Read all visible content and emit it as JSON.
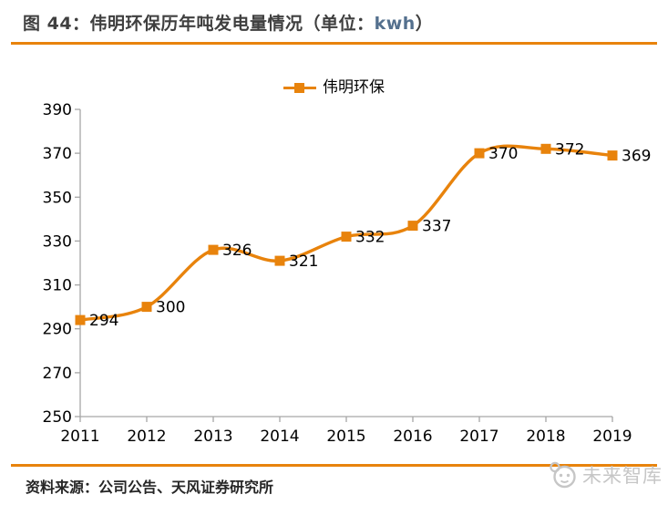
{
  "header": {
    "title_part1": "图 44：伟明环保历年吨发电量情况（单位：",
    "title_unit": "kwh",
    "title_part2": "）"
  },
  "footer": {
    "source": "资料来源：公司公告、天风证券研究所",
    "watermark": "未来智库"
  },
  "colors": {
    "accent_orange": "#E8830C",
    "axis_gray": "#A6A6A6",
    "title_gray": "#3F3F3F",
    "unit_blue": "#54708E",
    "label_black": "#000000",
    "watermark_gray": "#C6C6C6"
  },
  "chart_data": {
    "type": "line",
    "title": "伟明环保历年吨发电量情况",
    "unit": "kwh",
    "categories": [
      "2011",
      "2012",
      "2013",
      "2014",
      "2015",
      "2016",
      "2017",
      "2018",
      "2019"
    ],
    "series": [
      {
        "name": "伟明环保",
        "values": [
          294,
          300,
          326,
          321,
          332,
          337,
          370,
          372,
          369
        ]
      }
    ],
    "ylim": [
      250,
      390
    ],
    "yticks": [
      250,
      270,
      290,
      310,
      330,
      350,
      370,
      390
    ],
    "xlabel": "",
    "ylabel": "",
    "grid": false,
    "legend_position": "top-center",
    "smooth": true,
    "marker": "square",
    "data_labels": true
  }
}
